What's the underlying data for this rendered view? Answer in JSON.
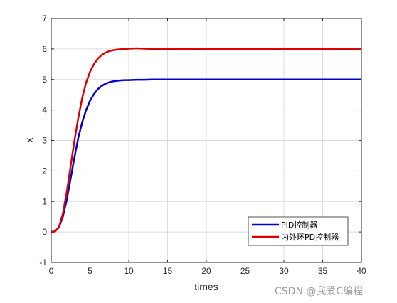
{
  "chart_data": {
    "type": "line",
    "title": "",
    "xlabel": "times",
    "ylabel": "x",
    "xlim": [
      0,
      40
    ],
    "ylim": [
      -1,
      7
    ],
    "xticks": [
      0,
      5,
      10,
      15,
      20,
      25,
      30,
      35,
      40
    ],
    "yticks": [
      -1,
      0,
      1,
      2,
      3,
      4,
      5,
      6,
      7
    ],
    "grid": true,
    "legend_position": "bottom-right",
    "x": [
      0,
      0.5,
      1,
      1.5,
      2,
      2.5,
      3,
      3.5,
      4,
      4.5,
      5,
      5.5,
      6,
      6.5,
      7,
      7.5,
      8,
      8.5,
      9,
      9.5,
      10,
      11,
      12,
      13,
      14,
      15,
      20,
      25,
      30,
      35,
      40
    ],
    "series": [
      {
        "name": "PID控制器",
        "color": "#0000cc",
        "values": [
          0,
          0.02,
          0.15,
          0.5,
          1.05,
          1.75,
          2.45,
          3.1,
          3.6,
          4.0,
          4.3,
          4.52,
          4.68,
          4.79,
          4.86,
          4.91,
          4.94,
          4.96,
          4.97,
          4.98,
          4.98,
          4.99,
          4.99,
          5.0,
          5.0,
          5.0,
          5.0,
          5.0,
          5.0,
          5.0,
          5.0
        ]
      },
      {
        "name": "内外环PD控制器",
        "color": "#dd0000",
        "values": [
          0,
          0.02,
          0.16,
          0.6,
          1.3,
          2.15,
          3.0,
          3.75,
          4.4,
          4.9,
          5.25,
          5.5,
          5.68,
          5.8,
          5.88,
          5.93,
          5.96,
          5.98,
          5.99,
          6.0,
          6.01,
          6.02,
          6.01,
          6.0,
          6.0,
          6.0,
          6.0,
          6.0,
          6.0,
          6.0,
          6.0
        ]
      }
    ]
  },
  "watermark": "CSDN @我爱C编程"
}
